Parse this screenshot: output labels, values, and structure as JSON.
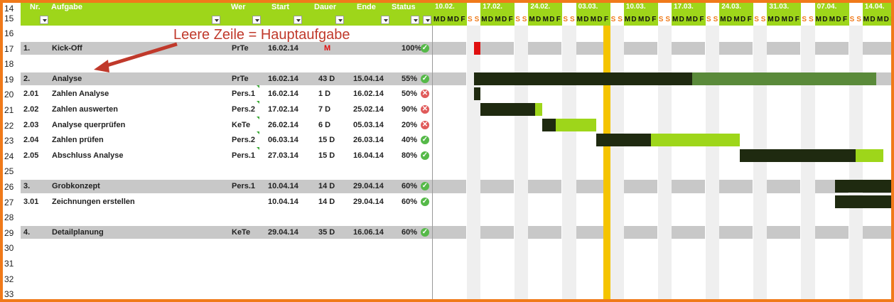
{
  "row_numbers": [
    "14",
    "15",
    "16",
    "17",
    "18",
    "19",
    "20",
    "21",
    "22",
    "23",
    "24",
    "25",
    "26",
    "27",
    "28",
    "29",
    "30",
    "31",
    "32",
    "33"
  ],
  "headers": {
    "nr": "Nr.",
    "aufgabe": "Aufgabe",
    "wer": "Wer",
    "start": "Start",
    "dauer": "Dauer",
    "ende": "Ende",
    "status": "Status"
  },
  "annotation": "Leere Zeile = Hauptaufgabe",
  "week_dates": [
    "10.02.",
    "17.02.",
    "24.02.",
    "03.03.",
    "10.03.",
    "17.03.",
    "24.03.",
    "31.03.",
    "07.04.",
    "14.04."
  ],
  "week_days": [
    "M",
    "D",
    "M",
    "D",
    "F",
    "S",
    "S"
  ],
  "colors": {
    "accent": "#9ed61a",
    "frame": "#f07a1a",
    "today": "#f5c400",
    "bar_dark": "#1f2a10",
    "bar_green": "#9ed61a",
    "bar_mid": "#5a8a3a",
    "milestone": "#e01010"
  },
  "tasks": [
    {
      "nr": "1.",
      "name": "Kick-Off",
      "wer": "PrTe",
      "start": "16.02.14",
      "dauer": "M",
      "ende": "",
      "status": "100%",
      "icon": "check-icon",
      "main": true
    },
    {
      "nr": "",
      "name": "",
      "wer": "",
      "start": "",
      "dauer": "",
      "ende": "",
      "status": "",
      "icon": "",
      "main": false
    },
    {
      "nr": "2.",
      "name": "Analyse",
      "wer": "PrTe",
      "start": "16.02.14",
      "dauer": "43 D",
      "ende": "15.04.14",
      "status": "55%",
      "icon": "check-icon",
      "main": true
    },
    {
      "nr": "2.01",
      "name": "Zahlen Analyse",
      "wer": "Pers.1",
      "start": "16.02.14",
      "dauer": "1 D",
      "ende": "16.02.14",
      "status": "50%",
      "icon": "cross-icon",
      "main": false
    },
    {
      "nr": "2.02",
      "name": "Zahlen auswerten",
      "wer": "Pers.2",
      "start": "17.02.14",
      "dauer": "7 D",
      "ende": "25.02.14",
      "status": "90%",
      "icon": "cross-icon",
      "main": false
    },
    {
      "nr": "2.03",
      "name": "Analyse querprüfen",
      "wer": "KeTe",
      "start": "26.02.14",
      "dauer": "6 D",
      "ende": "05.03.14",
      "status": "20%",
      "icon": "cross-icon",
      "main": false
    },
    {
      "nr": "2.04",
      "name": "Zahlen prüfen",
      "wer": "Pers.2",
      "start": "06.03.14",
      "dauer": "15 D",
      "ende": "26.03.14",
      "status": "40%",
      "icon": "check-icon",
      "main": false
    },
    {
      "nr": "2.05",
      "name": "Abschluss Analyse",
      "wer": "Pers.1",
      "start": "27.03.14",
      "dauer": "15 D",
      "ende": "16.04.14",
      "status": "80%",
      "icon": "check-icon",
      "main": false
    },
    {
      "nr": "",
      "name": "",
      "wer": "",
      "start": "",
      "dauer": "",
      "ende": "",
      "status": "",
      "icon": "",
      "main": false
    },
    {
      "nr": "3.",
      "name": "Grobkonzept",
      "wer": "Pers.1",
      "start": "10.04.14",
      "dauer": "14 D",
      "ende": "29.04.14",
      "status": "60%",
      "icon": "check-icon",
      "main": true
    },
    {
      "nr": "3.01",
      "name": "Zeichnungen erstellen",
      "wer": "",
      "start": "10.04.14",
      "dauer": "14 D",
      "ende": "29.04.14",
      "status": "60%",
      "icon": "check-icon",
      "main": false
    },
    {
      "nr": "",
      "name": "",
      "wer": "",
      "start": "",
      "dauer": "",
      "ende": "",
      "status": "",
      "icon": "",
      "main": false
    },
    {
      "nr": "4.",
      "name": "Detailplanung",
      "wer": "KeTe",
      "start": "29.04.14",
      "dauer": "35 D",
      "ende": "16.06.14",
      "status": "60%",
      "icon": "check-icon",
      "main": true
    }
  ]
}
